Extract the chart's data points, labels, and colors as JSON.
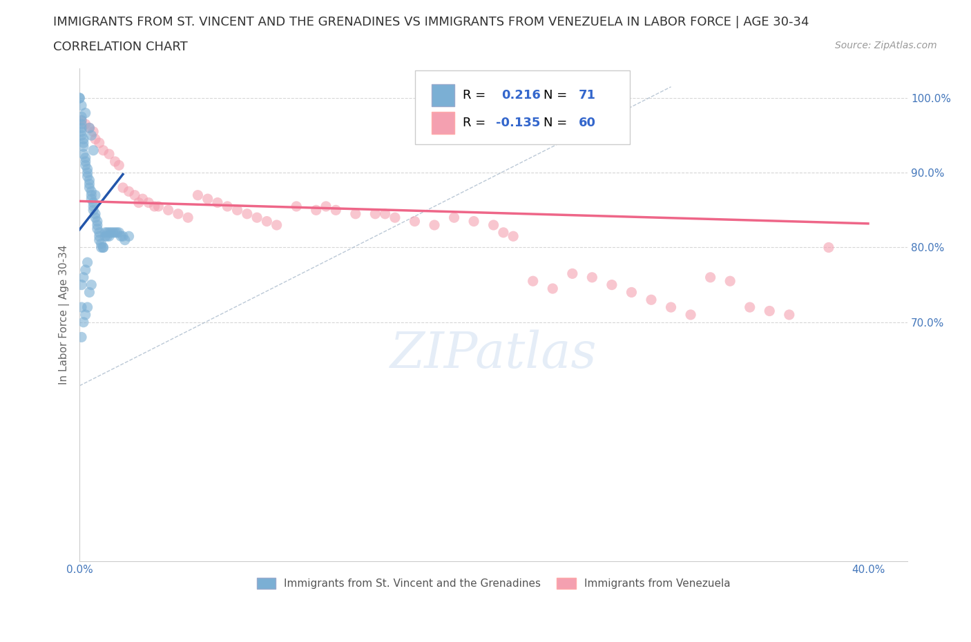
{
  "title_line1": "IMMIGRANTS FROM ST. VINCENT AND THE GRENADINES VS IMMIGRANTS FROM VENEZUELA IN LABOR FORCE | AGE 30-34",
  "title_line2": "CORRELATION CHART",
  "source_text": "Source: ZipAtlas.com",
  "ylabel": "In Labor Force | Age 30-34",
  "xlim": [
    0.0,
    0.42
  ],
  "ylim": [
    0.38,
    1.04
  ],
  "xtick_positions": [
    0.0,
    0.05,
    0.1,
    0.15,
    0.2,
    0.25,
    0.3,
    0.35,
    0.4
  ],
  "xticklabels": [
    "0.0%",
    "",
    "",
    "",
    "",
    "",
    "",
    "",
    "40.0%"
  ],
  "ytick_positions": [
    0.7,
    0.8,
    0.9,
    1.0
  ],
  "ytick_labels": [
    "70.0%",
    "80.0%",
    "90.0%",
    "100.0%"
  ],
  "blue_color": "#7BAFD4",
  "pink_color": "#F4A0B0",
  "blue_line_color": "#2255AA",
  "pink_line_color": "#EE6688",
  "ref_line_color": "#AABBCC",
  "watermark_color": "#CCDDF0",
  "blue_scatter_x": [
    0.0,
    0.0,
    0.001,
    0.001,
    0.001,
    0.001,
    0.001,
    0.001,
    0.001,
    0.002,
    0.002,
    0.002,
    0.002,
    0.003,
    0.003,
    0.003,
    0.004,
    0.004,
    0.004,
    0.005,
    0.005,
    0.005,
    0.006,
    0.006,
    0.006,
    0.007,
    0.007,
    0.007,
    0.008,
    0.008,
    0.009,
    0.009,
    0.009,
    0.01,
    0.01,
    0.01,
    0.011,
    0.011,
    0.012,
    0.012,
    0.013,
    0.013,
    0.014,
    0.014,
    0.015,
    0.015,
    0.016,
    0.017,
    0.018,
    0.019,
    0.02,
    0.021,
    0.022,
    0.023,
    0.025,
    0.003,
    0.005,
    0.006,
    0.007,
    0.008,
    0.004,
    0.003,
    0.002,
    0.001,
    0.001,
    0.001,
    0.002,
    0.003,
    0.004,
    0.005,
    0.006
  ],
  "blue_scatter_y": [
    1.0,
    1.0,
    0.99,
    0.975,
    0.97,
    0.965,
    0.96,
    0.955,
    0.95,
    0.945,
    0.94,
    0.935,
    0.925,
    0.92,
    0.915,
    0.91,
    0.905,
    0.9,
    0.895,
    0.89,
    0.885,
    0.88,
    0.875,
    0.87,
    0.865,
    0.86,
    0.855,
    0.85,
    0.845,
    0.84,
    0.835,
    0.83,
    0.825,
    0.82,
    0.815,
    0.81,
    0.805,
    0.8,
    0.8,
    0.8,
    0.82,
    0.815,
    0.82,
    0.815,
    0.82,
    0.815,
    0.82,
    0.82,
    0.82,
    0.82,
    0.82,
    0.815,
    0.815,
    0.81,
    0.815,
    0.98,
    0.96,
    0.95,
    0.93,
    0.87,
    0.78,
    0.77,
    0.76,
    0.75,
    0.72,
    0.68,
    0.7,
    0.71,
    0.72,
    0.74,
    0.75
  ],
  "pink_scatter_x": [
    0.001,
    0.003,
    0.005,
    0.007,
    0.008,
    0.01,
    0.012,
    0.015,
    0.018,
    0.02,
    0.022,
    0.025,
    0.028,
    0.03,
    0.032,
    0.035,
    0.038,
    0.04,
    0.045,
    0.05,
    0.055,
    0.06,
    0.065,
    0.07,
    0.075,
    0.08,
    0.085,
    0.09,
    0.095,
    0.1,
    0.11,
    0.12,
    0.125,
    0.13,
    0.14,
    0.15,
    0.155,
    0.16,
    0.17,
    0.18,
    0.19,
    0.2,
    0.21,
    0.215,
    0.22,
    0.23,
    0.24,
    0.25,
    0.26,
    0.27,
    0.28,
    0.29,
    0.3,
    0.31,
    0.32,
    0.33,
    0.34,
    0.35,
    0.36,
    0.38
  ],
  "pink_scatter_y": [
    0.97,
    0.965,
    0.96,
    0.955,
    0.945,
    0.94,
    0.93,
    0.925,
    0.915,
    0.91,
    0.88,
    0.875,
    0.87,
    0.86,
    0.865,
    0.86,
    0.855,
    0.855,
    0.85,
    0.845,
    0.84,
    0.87,
    0.865,
    0.86,
    0.855,
    0.85,
    0.845,
    0.84,
    0.835,
    0.83,
    0.855,
    0.85,
    0.855,
    0.85,
    0.845,
    0.845,
    0.845,
    0.84,
    0.835,
    0.83,
    0.84,
    0.835,
    0.83,
    0.82,
    0.815,
    0.755,
    0.745,
    0.765,
    0.76,
    0.75,
    0.74,
    0.73,
    0.72,
    0.71,
    0.76,
    0.755,
    0.72,
    0.715,
    0.71,
    0.8
  ],
  "blue_trend_x": [
    0.0,
    0.022
  ],
  "blue_trend_y": [
    0.824,
    0.898
  ],
  "pink_trend_x": [
    0.0,
    0.4
  ],
  "pink_trend_y": [
    0.862,
    0.832
  ],
  "ref_line_x": [
    0.0,
    0.3
  ],
  "ref_line_y": [
    0.615,
    1.015
  ],
  "title_fontsize": 13,
  "subtitle_fontsize": 13,
  "source_fontsize": 10,
  "axis_label_fontsize": 11,
  "tick_fontsize": 11,
  "legend_fontsize": 13,
  "watermark_fontsize": 52
}
